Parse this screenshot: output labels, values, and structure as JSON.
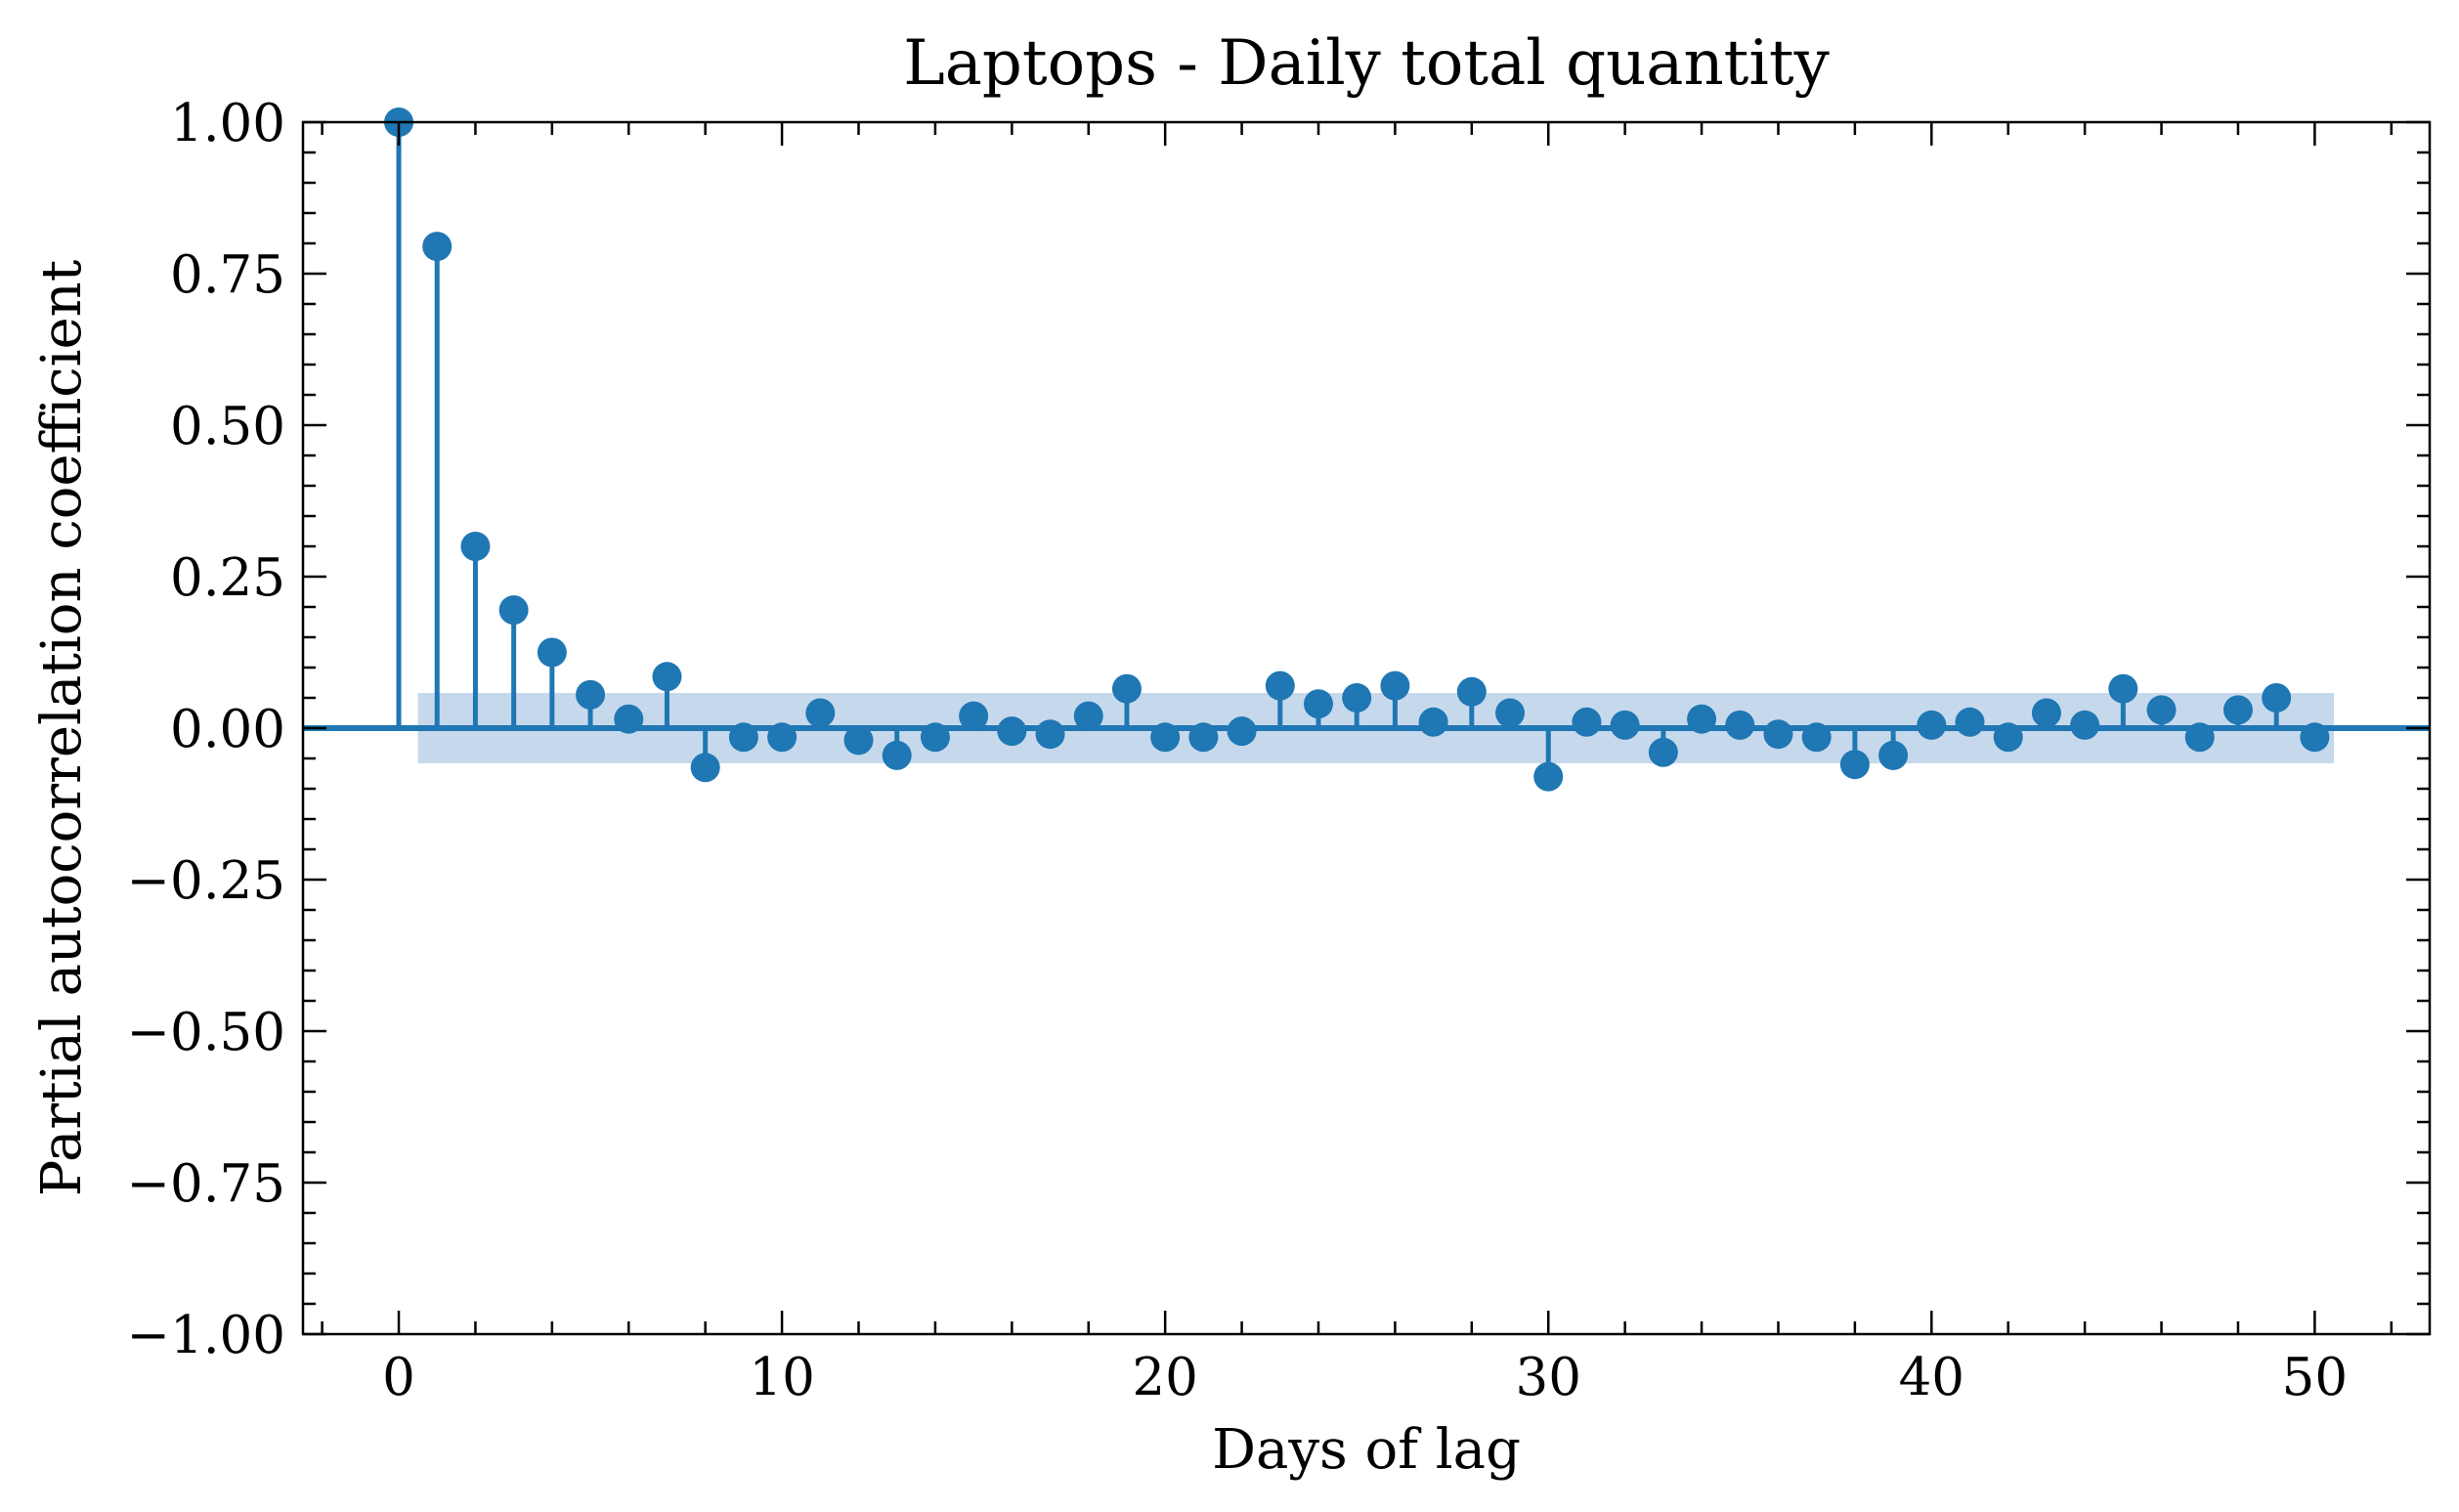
{
  "chart_data": {
    "type": "stem",
    "title": "Laptops - Daily total quantity",
    "xlabel": "Days of lag",
    "ylabel": "Partial autocorrelation coefficient",
    "xlim": [
      -2.5,
      53
    ],
    "ylim": [
      -1.0,
      1.0
    ],
    "x_ticks": [
      0,
      10,
      20,
      30,
      40,
      50
    ],
    "x_tick_labels": [
      "0",
      "10",
      "20",
      "30",
      "40",
      "50"
    ],
    "y_ticks": [
      -1.0,
      -0.75,
      -0.5,
      -0.25,
      0.0,
      0.25,
      0.5,
      0.75,
      1.0
    ],
    "y_tick_labels": [
      "−1.00",
      "−0.75",
      "−0.50",
      "−0.25",
      "0.00",
      "0.25",
      "0.50",
      "0.75",
      "1.00"
    ],
    "grid": false,
    "series": [
      {
        "x": [
          0,
          1,
          2,
          3,
          4,
          5,
          6,
          7,
          8,
          9,
          10,
          11,
          12,
          13,
          14,
          15,
          16,
          17,
          18,
          19,
          20,
          21,
          22,
          23,
          24,
          25,
          26,
          27,
          28,
          29,
          30,
          31,
          32,
          33,
          34,
          35,
          36,
          37,
          38,
          39,
          40,
          41,
          42,
          43,
          44,
          45,
          46,
          47,
          48,
          49,
          50
        ],
        "values": [
          1.0,
          0.795,
          0.3,
          0.195,
          0.125,
          0.055,
          0.015,
          0.085,
          -0.065,
          -0.015,
          -0.015,
          0.025,
          -0.02,
          -0.045,
          -0.015,
          0.02,
          -0.005,
          -0.01,
          0.02,
          0.065,
          -0.015,
          -0.015,
          -0.005,
          0.07,
          0.04,
          0.05,
          0.07,
          0.01,
          0.06,
          0.025,
          -0.08,
          0.01,
          0.005,
          -0.04,
          0.015,
          0.005,
          -0.01,
          -0.015,
          -0.06,
          -0.045,
          0.005,
          0.01,
          -0.015,
          0.025,
          0.005,
          0.065,
          0.03,
          -0.015,
          0.03,
          0.05,
          -0.015
        ]
      }
    ],
    "confidence_band": {
      "from_lag": 0.5,
      "to_lag": 50.5,
      "lower": -0.058,
      "upper": 0.058
    },
    "colors": {
      "series": "#1f77b4",
      "band": "#c6d9ec",
      "axes": "#000000"
    }
  }
}
